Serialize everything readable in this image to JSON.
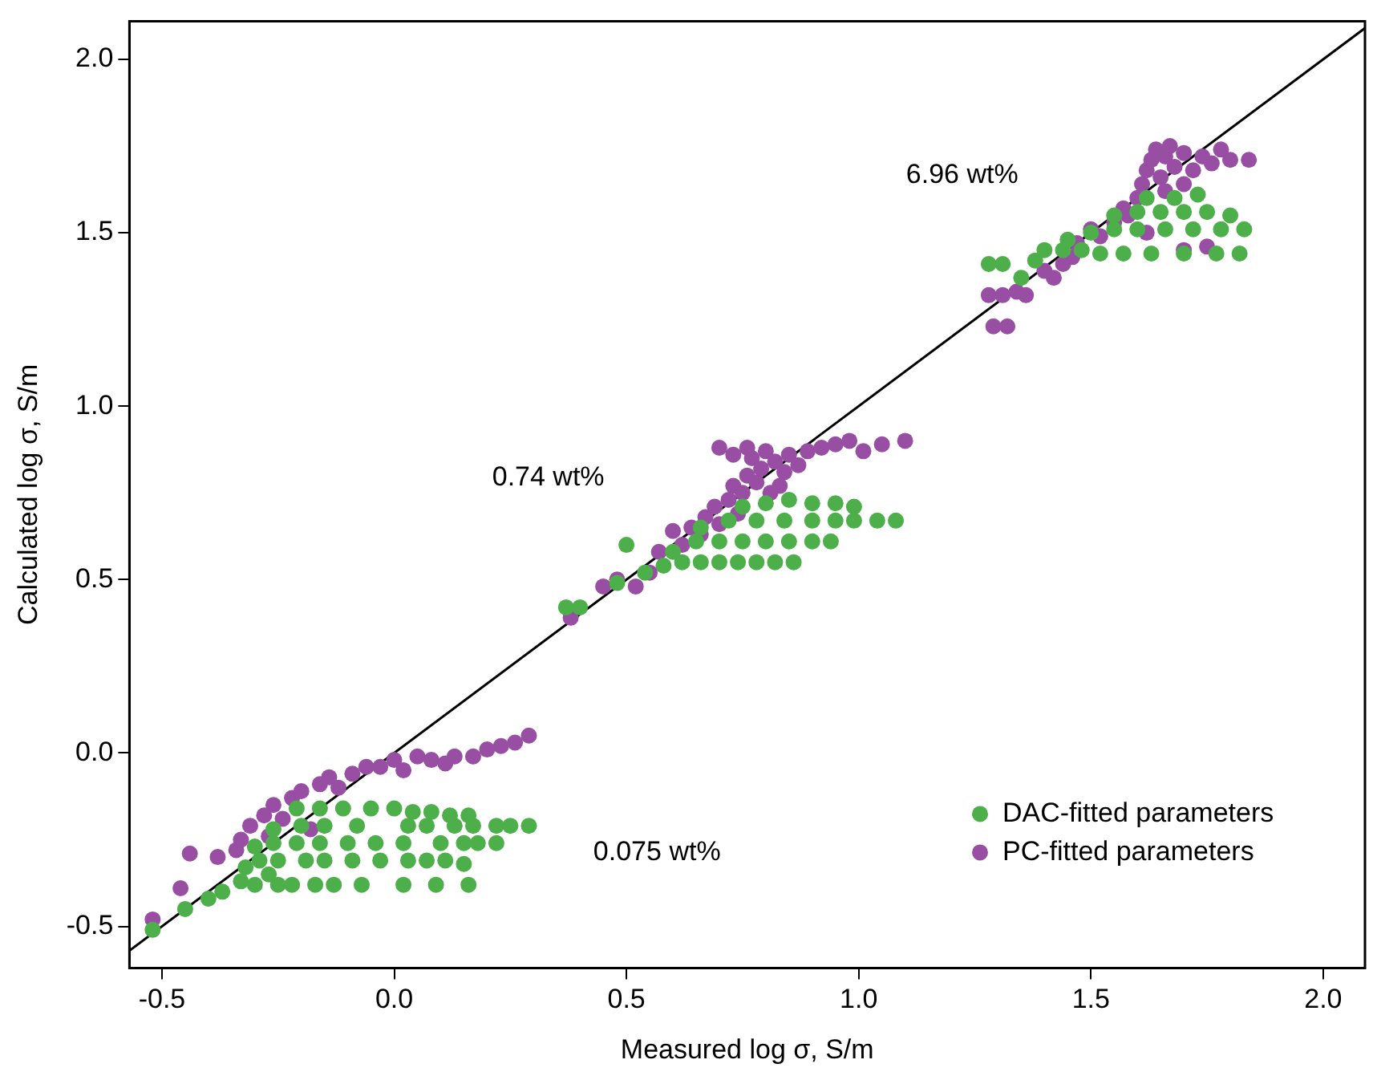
{
  "chart_data": {
    "type": "scatter",
    "xlabel": "Measured log σ, S/m",
    "ylabel": "Calculated log σ, S/m",
    "xlim": [
      -0.57,
      2.09
    ],
    "ylim": [
      -0.62,
      2.11
    ],
    "xticks": [
      {
        "value": -0.5,
        "label": "-0.5"
      },
      {
        "value": 0,
        "label": "0.0"
      },
      {
        "value": 0.5,
        "label": "0.5"
      },
      {
        "value": 1,
        "label": "1.0"
      },
      {
        "value": 1.5,
        "label": "1.5"
      },
      {
        "value": 2,
        "label": "2.0"
      }
    ],
    "yticks": [
      {
        "value": -0.5,
        "label": "-0.5"
      },
      {
        "value": 0,
        "label": "0.0"
      },
      {
        "value": 0.5,
        "label": "0.5"
      },
      {
        "value": 1,
        "label": "1.0"
      },
      {
        "value": 1.5,
        "label": "1.5"
      },
      {
        "value": 2,
        "label": "2.0"
      }
    ],
    "grid": false,
    "legend": "bottom right",
    "marker": "circle",
    "annotations": [
      "6.96 wt%",
      "0.74 wt%",
      "0.075 wt%"
    ],
    "series": [
      {
        "type": "line",
        "color": "#000000",
        "line_style": "solid",
        "marker": "none",
        "x": [
          -0.57,
          2.09
        ],
        "values": [
          -0.57,
          2.09
        ]
      },
      {
        "name": "DAC-fitted parameters",
        "color": "#4daf4a",
        "x": [
          -0.52,
          -0.45,
          -0.4,
          -0.37,
          -0.33,
          -0.3,
          -0.27,
          -0.25,
          -0.22,
          -0.17,
          -0.13,
          -0.07,
          0.02,
          0.09,
          0.16,
          -0.32,
          -0.29,
          -0.25,
          -0.19,
          -0.15,
          -0.09,
          -0.03,
          0.03,
          0.07,
          0.11,
          0.15,
          -0.3,
          -0.26,
          -0.21,
          -0.16,
          -0.1,
          -0.04,
          0.02,
          0.1,
          0.15,
          0.18,
          0.22,
          -0.26,
          -0.2,
          -0.15,
          -0.08,
          0.03,
          0.07,
          0.13,
          0.17,
          0.22,
          0.25,
          0.29,
          -0.21,
          -0.16,
          -0.11,
          -0.05,
          0,
          0.04,
          0.08,
          0.12,
          0.16,
          0.37,
          0.4,
          0.48,
          0.5,
          0.54,
          0.58,
          0.62,
          0.66,
          0.7,
          0.74,
          0.78,
          0.82,
          0.86,
          0.6,
          0.65,
          0.7,
          0.75,
          0.8,
          0.85,
          0.9,
          0.94,
          0.66,
          0.72,
          0.78,
          0.84,
          0.9,
          0.95,
          0.99,
          1.04,
          1.08,
          0.75,
          0.8,
          0.85,
          0.9,
          0.95,
          0.99,
          1.28,
          1.31,
          1.35,
          1.38,
          1.4,
          1.44,
          1.48,
          1.52,
          1.57,
          1.63,
          1.7,
          1.77,
          1.82,
          1.45,
          1.5,
          1.55,
          1.6,
          1.66,
          1.72,
          1.78,
          1.83,
          1.55,
          1.6,
          1.65,
          1.7,
          1.75,
          1.8,
          1.62,
          1.68,
          1.73
        ],
        "values": [
          -0.51,
          -0.45,
          -0.42,
          -0.4,
          -0.37,
          -0.38,
          -0.35,
          -0.38,
          -0.38,
          -0.38,
          -0.38,
          -0.38,
          -0.38,
          -0.38,
          -0.38,
          -0.33,
          -0.31,
          -0.31,
          -0.31,
          -0.31,
          -0.31,
          -0.31,
          -0.31,
          -0.31,
          -0.31,
          -0.32,
          -0.27,
          -0.26,
          -0.26,
          -0.26,
          -0.26,
          -0.26,
          -0.26,
          -0.26,
          -0.26,
          -0.26,
          -0.26,
          -0.22,
          -0.21,
          -0.21,
          -0.21,
          -0.21,
          -0.21,
          -0.21,
          -0.21,
          -0.21,
          -0.21,
          -0.21,
          -0.16,
          -0.16,
          -0.16,
          -0.16,
          -0.16,
          -0.17,
          -0.17,
          -0.18,
          -0.18,
          0.42,
          0.42,
          0.49,
          0.6,
          0.52,
          0.54,
          0.55,
          0.55,
          0.55,
          0.55,
          0.55,
          0.55,
          0.55,
          0.58,
          0.61,
          0.61,
          0.61,
          0.61,
          0.61,
          0.61,
          0.61,
          0.65,
          0.67,
          0.67,
          0.67,
          0.67,
          0.67,
          0.67,
          0.67,
          0.67,
          0.71,
          0.72,
          0.73,
          0.72,
          0.72,
          0.71,
          1.41,
          1.41,
          1.37,
          1.42,
          1.45,
          1.45,
          1.45,
          1.44,
          1.44,
          1.44,
          1.44,
          1.44,
          1.44,
          1.48,
          1.5,
          1.51,
          1.51,
          1.51,
          1.51,
          1.51,
          1.51,
          1.55,
          1.56,
          1.56,
          1.56,
          1.56,
          1.55,
          1.6,
          1.6,
          1.61
        ]
      },
      {
        "name": "PC-fitted parameters",
        "color": "#984ea3",
        "x": [
          -0.52,
          -0.46,
          -0.44,
          -0.38,
          -0.34,
          -0.33,
          -0.31,
          -0.28,
          -0.27,
          -0.26,
          -0.24,
          -0.22,
          -0.2,
          -0.18,
          -0.16,
          -0.14,
          -0.12,
          -0.09,
          -0.06,
          -0.03,
          0,
          0.02,
          0.05,
          0.08,
          0.11,
          0.13,
          0.17,
          0.2,
          0.23,
          0.26,
          0.29,
          0.38,
          0.45,
          0.48,
          0.52,
          0.55,
          0.57,
          0.6,
          0.62,
          0.64,
          0.66,
          0.67,
          0.69,
          0.7,
          0.72,
          0.73,
          0.74,
          0.75,
          0.76,
          0.77,
          0.78,
          0.79,
          0.8,
          0.81,
          0.82,
          0.84,
          0.85,
          0.87,
          0.89,
          0.92,
          0.95,
          0.98,
          1.01,
          1.05,
          1.1,
          0.7,
          0.73,
          0.76,
          0.83,
          1.28,
          1.31,
          1.29,
          1.32,
          1.34,
          1.36,
          1.4,
          1.42,
          1.44,
          1.46,
          1.47,
          1.5,
          1.52,
          1.55,
          1.57,
          1.58,
          1.6,
          1.61,
          1.62,
          1.63,
          1.64,
          1.65,
          1.66,
          1.67,
          1.68,
          1.7,
          1.72,
          1.74,
          1.76,
          1.78,
          1.8,
          1.84,
          1.75,
          1.7,
          1.62,
          1.66,
          1.7
        ],
        "values": [
          -0.48,
          -0.39,
          -0.29,
          -0.3,
          -0.28,
          -0.25,
          -0.21,
          -0.18,
          -0.24,
          -0.15,
          -0.19,
          -0.13,
          -0.11,
          -0.22,
          -0.09,
          -0.07,
          -0.1,
          -0.06,
          -0.04,
          -0.04,
          -0.02,
          -0.05,
          -0.01,
          -0.02,
          -0.03,
          -0.01,
          -0.01,
          0.01,
          0.02,
          0.03,
          0.05,
          0.39,
          0.48,
          0.5,
          0.48,
          0.52,
          0.58,
          0.64,
          0.6,
          0.65,
          0.63,
          0.68,
          0.71,
          0.66,
          0.73,
          0.77,
          0.69,
          0.75,
          0.8,
          0.85,
          0.78,
          0.82,
          0.87,
          0.75,
          0.84,
          0.81,
          0.86,
          0.83,
          0.87,
          0.88,
          0.89,
          0.9,
          0.87,
          0.89,
          0.9,
          0.88,
          0.86,
          0.88,
          0.77,
          1.32,
          1.32,
          1.23,
          1.23,
          1.33,
          1.32,
          1.39,
          1.37,
          1.41,
          1.43,
          1.47,
          1.51,
          1.49,
          1.53,
          1.57,
          1.55,
          1.6,
          1.64,
          1.68,
          1.71,
          1.74,
          1.66,
          1.72,
          1.75,
          1.69,
          1.73,
          1.68,
          1.72,
          1.7,
          1.74,
          1.71,
          1.71,
          1.46,
          1.45,
          1.5,
          1.62,
          1.64
        ]
      }
    ]
  }
}
